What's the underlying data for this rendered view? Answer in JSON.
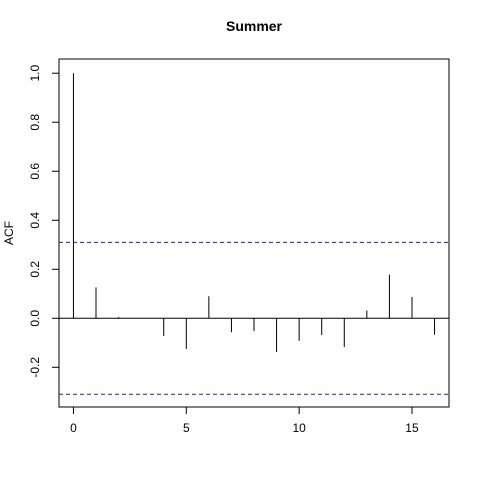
{
  "chart_data": {
    "type": "bar",
    "title": "Summer",
    "xlabel": "",
    "ylabel": "ACF",
    "xlim": [
      -0.64,
      16.64
    ],
    "ylim": [
      -0.362,
      1.058
    ],
    "x_ticks": [
      0,
      5,
      10,
      15
    ],
    "y_ticks": [
      -0.2,
      0.0,
      0.2,
      0.4,
      0.6,
      0.8,
      1.0
    ],
    "x_tick_labels": [
      "0",
      "5",
      "10",
      "15"
    ],
    "y_tick_labels": [
      "-0.2",
      "0.0",
      "0.2",
      "0.4",
      "0.6",
      "0.8",
      "1.0"
    ],
    "lags": [
      0,
      1,
      2,
      3,
      4,
      5,
      6,
      7,
      8,
      9,
      10,
      11,
      12,
      13,
      14,
      15,
      16
    ],
    "values": [
      1.0,
      0.126,
      0.005,
      0.0,
      -0.072,
      -0.125,
      0.09,
      -0.057,
      -0.052,
      -0.138,
      -0.092,
      -0.068,
      -0.117,
      0.032,
      0.178,
      0.087,
      -0.067
    ],
    "confidence_bound": 0.31,
    "zero_line": 0,
    "colors": {
      "bars": "#000000",
      "confidence": "#1f1fbf",
      "axis": "#000000"
    }
  }
}
